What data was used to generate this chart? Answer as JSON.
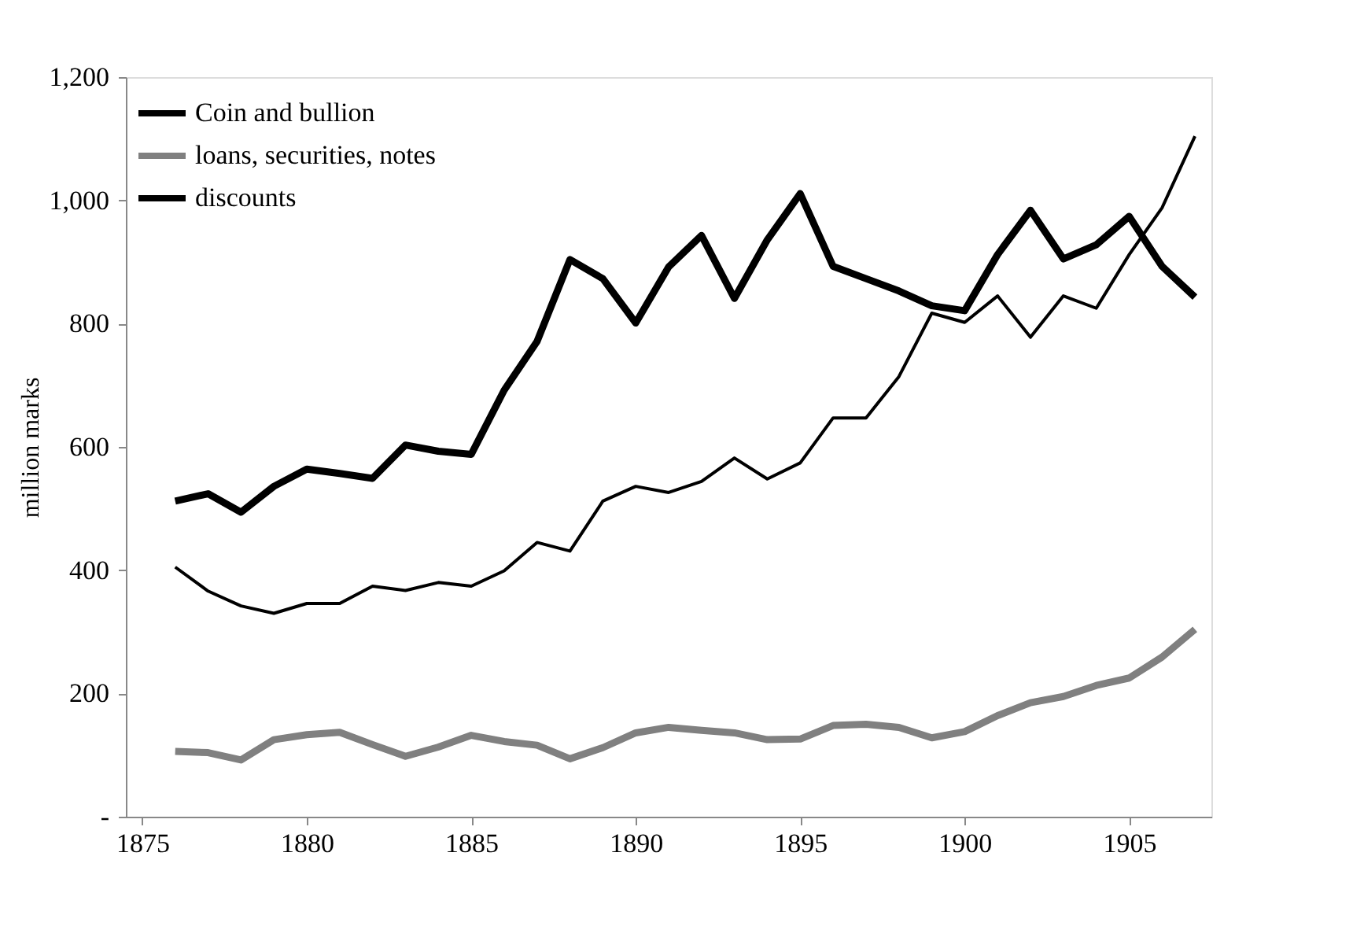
{
  "chart_data": {
    "type": "line",
    "ylabel": "million marks",
    "x": [
      1876,
      1877,
      1878,
      1879,
      1880,
      1881,
      1882,
      1883,
      1884,
      1885,
      1886,
      1887,
      1888,
      1889,
      1890,
      1891,
      1892,
      1893,
      1894,
      1895,
      1896,
      1897,
      1898,
      1899,
      1900,
      1901,
      1902,
      1903,
      1904,
      1905,
      1906,
      1907
    ],
    "series": [
      {
        "name": "Coin and bullion",
        "color": "#000000",
        "values": [
          512,
          524,
          494,
          536,
          564,
          557,
          549,
          603,
          593,
          588,
          692,
          771,
          904,
          873,
          801,
          892,
          943,
          841,
          936,
          1011,
          893,
          873,
          853,
          829,
          821,
          912,
          984,
          905,
          928,
          974,
          893,
          843
        ]
      },
      {
        "name": "loans, securities, notes",
        "color": "#808080",
        "values": [
          106,
          104,
          92,
          125,
          133,
          137,
          117,
          98,
          113,
          132,
          122,
          116,
          94,
          112,
          136,
          145,
          140,
          136,
          125,
          126,
          148,
          150,
          145,
          128,
          138,
          164,
          185,
          195,
          213,
          225,
          259,
          304
        ]
      },
      {
        "name": "discounts",
        "color": "#000000",
        "values": [
          405,
          366,
          342,
          330,
          346,
          346,
          374,
          367,
          380,
          374,
          399,
          445,
          431,
          512,
          536,
          526,
          544,
          582,
          548,
          574,
          647,
          647,
          714,
          817,
          802,
          845,
          778,
          845,
          825,
          912,
          988,
          1104
        ]
      }
    ],
    "xlim": [
      1874.5,
      1907.5
    ],
    "xticks": [
      1875,
      1880,
      1885,
      1890,
      1895,
      1900,
      1905
    ],
    "ylim": [
      0,
      1200
    ],
    "yticks": [
      {
        "value": 0,
        "label": "-"
      },
      200,
      400,
      600,
      800,
      {
        "value": 1000,
        "label": "1,000"
      },
      {
        "value": 1200,
        "label": "1,200"
      }
    ],
    "grid": false,
    "legend": "top left",
    "line_style": "solid"
  }
}
